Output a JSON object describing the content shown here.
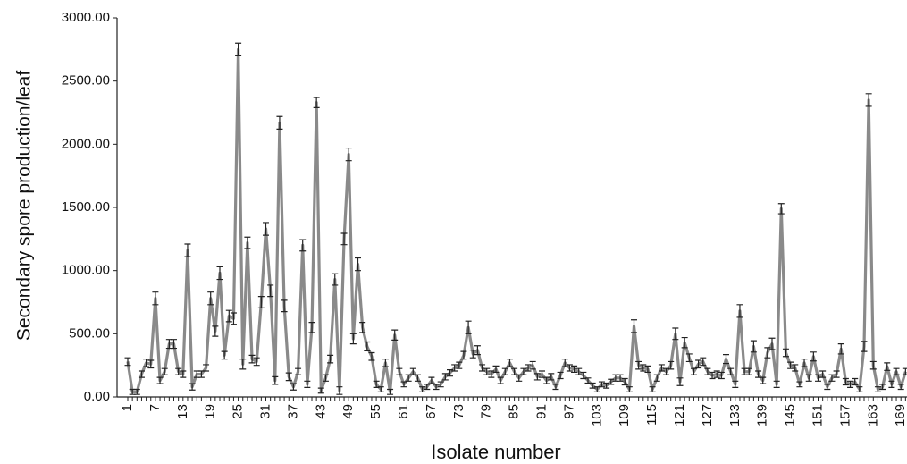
{
  "chart_data": {
    "type": "line",
    "y_label": "Secondary spore production/leaf",
    "x_label": "Isolate number",
    "categories": [
      "1",
      null,
      null,
      null,
      null,
      null,
      "7",
      null,
      null,
      null,
      null,
      null,
      "13",
      null,
      null,
      null,
      null,
      null,
      "19",
      null,
      null,
      null,
      null,
      null,
      "25",
      null,
      null,
      null,
      null,
      null,
      "31",
      null,
      null,
      null,
      null,
      null,
      "37",
      null,
      null,
      null,
      null,
      null,
      "43",
      null,
      null,
      null,
      null,
      null,
      "49",
      null,
      null,
      null,
      null,
      null,
      "55",
      null,
      null,
      null,
      null,
      null,
      "61",
      null,
      null,
      null,
      null,
      null,
      "67",
      null,
      null,
      null,
      null,
      null,
      "73",
      null,
      null,
      null,
      null,
      null,
      "79",
      null,
      null,
      null,
      null,
      null,
      "85",
      null,
      null,
      null,
      null,
      null,
      "91",
      null,
      null,
      null,
      null,
      null,
      "97",
      null,
      null,
      null,
      null,
      null,
      "103",
      null,
      null,
      null,
      null,
      null,
      "109",
      null,
      null,
      null,
      null,
      null,
      "115",
      null,
      null,
      null,
      null,
      null,
      "121",
      null,
      null,
      null,
      null,
      null,
      "127",
      null,
      null,
      null,
      null,
      null,
      "133",
      null,
      null,
      null,
      null,
      null,
      "139",
      null,
      null,
      null,
      null,
      null,
      "145",
      null,
      null,
      null,
      null,
      null,
      "151",
      null,
      null,
      null,
      null,
      null,
      "157",
      null,
      null,
      null,
      null,
      null,
      "163",
      null,
      null,
      null,
      null,
      null,
      "169",
      null
    ],
    "values": [
      280,
      40,
      40,
      180,
      270,
      260,
      780,
      130,
      200,
      420,
      420,
      200,
      180,
      1160,
      80,
      180,
      180,
      230,
      780,
      520,
      980,
      330,
      640,
      620,
      2750,
      260,
      1220,
      300,
      280,
      750,
      1330,
      840,
      130,
      2170,
      720,
      160,
      80,
      200,
      1200,
      100,
      550,
      2330,
      50,
      150,
      300,
      930,
      50,
      1250,
      1920,
      460,
      1050,
      550,
      400,
      320,
      100,
      60,
      270,
      40,
      490,
      200,
      100,
      150,
      200,
      150,
      60,
      80,
      130,
      80,
      100,
      160,
      190,
      230,
      250,
      330,
      550,
      340,
      370,
      230,
      200,
      180,
      220,
      130,
      200,
      270,
      200,
      150,
      200,
      230,
      250,
      160,
      180,
      130,
      160,
      80,
      170,
      270,
      230,
      220,
      200,
      170,
      130,
      90,
      60,
      100,
      90,
      120,
      150,
      150,
      120,
      60,
      560,
      250,
      230,
      220,
      60,
      150,
      230,
      200,
      250,
      500,
      120,
      430,
      310,
      200,
      260,
      280,
      200,
      170,
      180,
      170,
      300,
      200,
      100,
      680,
      200,
      200,
      400,
      180,
      130,
      350,
      420,
      100,
      1490,
      350,
      250,
      230,
      100,
      270,
      150,
      320,
      150,
      180,
      80,
      150,
      180,
      380,
      120,
      100,
      120,
      60,
      400,
      2350,
      250,
      60,
      80,
      240,
      100,
      200,
      80,
      200
    ],
    "errors": [
      30,
      20,
      20,
      25,
      30,
      30,
      50,
      25,
      25,
      35,
      35,
      25,
      25,
      50,
      25,
      25,
      25,
      25,
      50,
      40,
      50,
      30,
      45,
      45,
      50,
      40,
      45,
      30,
      30,
      45,
      50,
      45,
      30,
      50,
      45,
      30,
      25,
      25,
      45,
      25,
      40,
      40,
      20,
      25,
      30,
      45,
      30,
      45,
      50,
      40,
      50,
      40,
      35,
      30,
      25,
      20,
      30,
      20,
      40,
      25,
      20,
      25,
      25,
      25,
      20,
      20,
      25,
      20,
      20,
      25,
      25,
      25,
      25,
      30,
      50,
      30,
      35,
      25,
      25,
      25,
      25,
      25,
      25,
      30,
      25,
      25,
      25,
      25,
      30,
      25,
      25,
      25,
      25,
      20,
      25,
      30,
      25,
      25,
      25,
      25,
      20,
      20,
      20,
      20,
      20,
      20,
      25,
      25,
      25,
      20,
      50,
      30,
      25,
      25,
      20,
      25,
      25,
      25,
      30,
      45,
      30,
      40,
      30,
      25,
      30,
      30,
      25,
      25,
      25,
      25,
      35,
      25,
      25,
      50,
      25,
      25,
      45,
      25,
      25,
      40,
      45,
      25,
      40,
      30,
      25,
      25,
      20,
      30,
      25,
      35,
      25,
      25,
      20,
      25,
      25,
      40,
      25,
      25,
      25,
      20,
      40,
      50,
      30,
      20,
      20,
      30,
      25,
      25,
      20,
      25
    ],
    "color": "#8a8a8a",
    "ylim": [
      0,
      3000
    ],
    "yticks": [
      {
        "value": 0,
        "label": "0.00"
      },
      {
        "value": 500,
        "label": "500.00"
      },
      {
        "value": 1000,
        "label": "1000.00"
      },
      {
        "value": 1500,
        "label": "1500.00"
      },
      {
        "value": 2000,
        "label": "2000.00"
      },
      {
        "value": 2500,
        "label": "2500.00"
      },
      {
        "value": 3000,
        "label": "3000.00"
      }
    ]
  }
}
